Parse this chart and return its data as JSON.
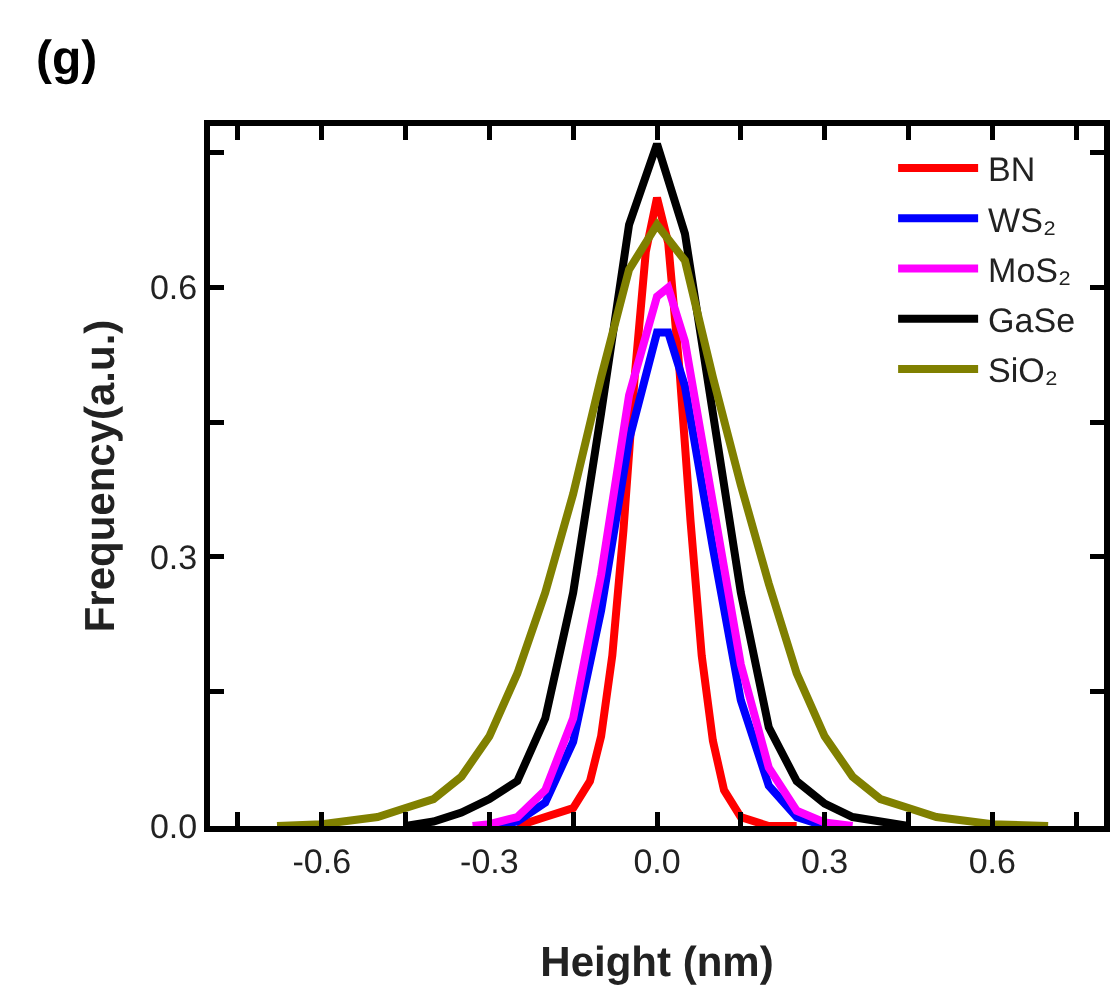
{
  "chart_data": {
    "type": "line",
    "title": "(g)",
    "xlabel": "Height (nm)",
    "ylabel": "Frequency(a.u.)",
    "xlim": [
      -0.8,
      0.8
    ],
    "ylim": [
      0,
      0.78
    ],
    "xticks": [
      {
        "value": -0.75,
        "label": null
      },
      -0.6,
      {
        "value": -0.45,
        "label": null
      },
      -0.3,
      {
        "value": -0.15,
        "label": null
      },
      {
        "value": 0,
        "label": "0.0"
      },
      {
        "value": 0.15,
        "label": null
      },
      0.3,
      {
        "value": 0.45,
        "label": null
      },
      0.6,
      {
        "value": 0.75,
        "label": null
      }
    ],
    "yticks": [
      {
        "value": 0,
        "label": "0.0"
      },
      {
        "value": 0.15,
        "label": null
      },
      0.3,
      {
        "value": 0.45,
        "label": null
      },
      0.6,
      {
        "value": 0.75,
        "label": null
      }
    ],
    "grid": false,
    "legend": "top right",
    "marker": "none",
    "line_style": "solid",
    "series": [
      {
        "name": "BN",
        "color": "#ff0000",
        "x": [
          -0.25,
          -0.2,
          -0.15,
          -0.12,
          -0.1,
          -0.08,
          -0.06,
          -0.04,
          -0.02,
          0,
          0.02,
          0.04,
          0.06,
          0.08,
          0.1,
          0.12,
          0.15,
          0.2,
          0.25
        ],
        "values": [
          0,
          0.01,
          0.02,
          0.05,
          0.1,
          0.19,
          0.33,
          0.5,
          0.64,
          0.7,
          0.65,
          0.51,
          0.34,
          0.19,
          0.095,
          0.04,
          0.01,
          0,
          0
        ]
      },
      {
        "name": "WS₂",
        "color": "#0000ff",
        "x": [
          -0.3,
          -0.25,
          -0.2,
          -0.15,
          -0.1,
          -0.05,
          0,
          0.02,
          0.05,
          0.1,
          0.15,
          0.2,
          0.25,
          0.3
        ],
        "values": [
          0,
          0.005,
          0.026,
          0.094,
          0.24,
          0.43,
          0.55,
          0.55,
          0.49,
          0.31,
          0.14,
          0.045,
          0.01,
          0
        ]
      },
      {
        "name": "MoS₂",
        "color": "#ff00ff",
        "x": [
          -0.33,
          -0.3,
          -0.25,
          -0.2,
          -0.15,
          -0.1,
          -0.05,
          0,
          0.02,
          0.05,
          0.1,
          0.15,
          0.2,
          0.25,
          0.3,
          0.35
        ],
        "values": [
          0,
          0.002,
          0.01,
          0.04,
          0.12,
          0.28,
          0.48,
          0.59,
          0.6,
          0.54,
          0.36,
          0.18,
          0.065,
          0.017,
          0.004,
          0
        ]
      },
      {
        "name": "GaSe",
        "color": "#000000",
        "x": [
          -0.45,
          -0.4,
          -0.35,
          -0.3,
          -0.25,
          -0.2,
          -0.15,
          -0.1,
          -0.05,
          0,
          0.05,
          0.1,
          0.15,
          0.2,
          0.25,
          0.3,
          0.35,
          0.4,
          0.45
        ],
        "values": [
          0,
          0.005,
          0.015,
          0.03,
          0.05,
          0.12,
          0.26,
          0.46,
          0.67,
          0.76,
          0.66,
          0.46,
          0.26,
          0.11,
          0.05,
          0.025,
          0.01,
          0.005,
          0
        ]
      },
      {
        "name": "SiO₂",
        "color": "#808000",
        "x": [
          -0.68,
          -0.6,
          -0.5,
          -0.45,
          -0.4,
          -0.35,
          -0.3,
          -0.25,
          -0.2,
          -0.15,
          -0.1,
          -0.05,
          0,
          0.05,
          0.1,
          0.15,
          0.2,
          0.25,
          0.3,
          0.35,
          0.4,
          0.45,
          0.5,
          0.6,
          0.7
        ],
        "values": [
          0,
          0.002,
          0.01,
          0.02,
          0.03,
          0.055,
          0.1,
          0.17,
          0.26,
          0.37,
          0.5,
          0.62,
          0.67,
          0.63,
          0.5,
          0.38,
          0.27,
          0.17,
          0.1,
          0.055,
          0.03,
          0.02,
          0.01,
          0.002,
          0
        ]
      }
    ]
  }
}
